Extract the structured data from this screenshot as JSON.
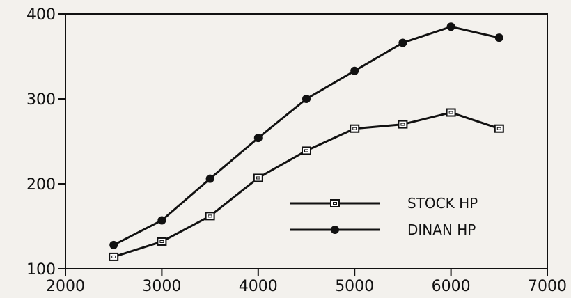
{
  "chart_data": {
    "type": "line",
    "title": "",
    "xlabel": "",
    "ylabel": "",
    "xlim": [
      2000,
      7000
    ],
    "ylim": [
      100,
      400
    ],
    "x_ticks": [
      "2000",
      "3000",
      "4000",
      "5000",
      "6000",
      "7000"
    ],
    "y_ticks": [
      "100",
      "200",
      "300",
      "400"
    ],
    "grid": false,
    "legend_position": "lower-right",
    "x": [
      2500,
      3000,
      3500,
      4000,
      4500,
      5000,
      5500,
      6000,
      6500
    ],
    "series": [
      {
        "name": "STOCK HP",
        "marker": "open-square",
        "color": "#111111",
        "values": [
          114,
          132,
          162,
          207,
          239,
          265,
          270,
          284,
          265
        ]
      },
      {
        "name": "DINAN HP",
        "marker": "filled-circle",
        "color": "#111111",
        "values": [
          128,
          157,
          206,
          254,
          300,
          333,
          366,
          385,
          372
        ]
      }
    ]
  }
}
